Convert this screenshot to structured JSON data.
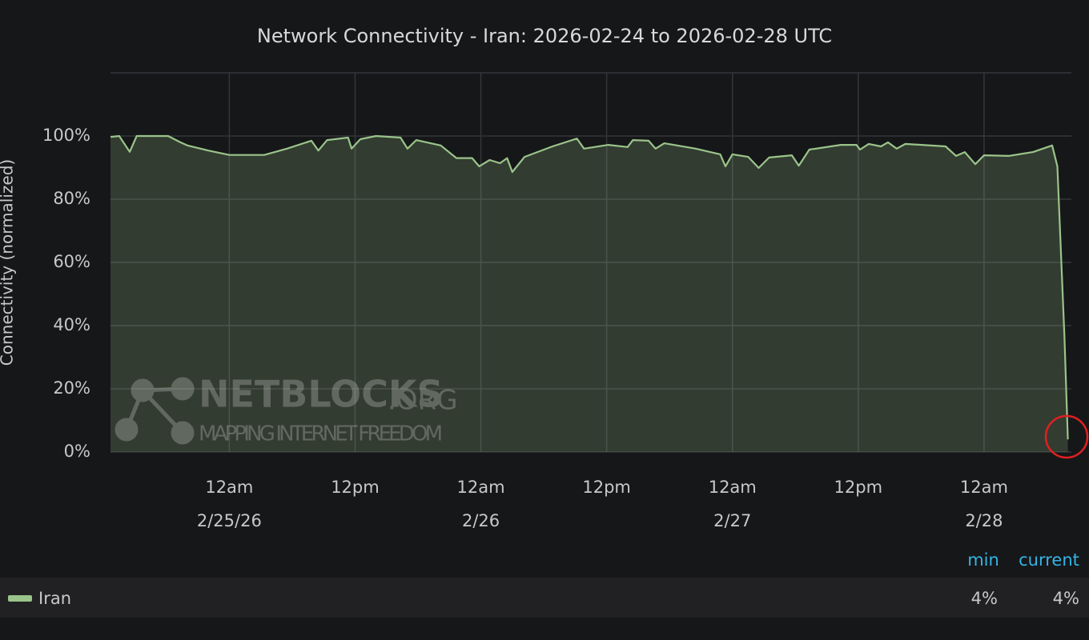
{
  "chart_data": {
    "type": "line",
    "title": "Network Connectivity - Iran: 2026-02-24 to 2026-02-28 UTC",
    "y_label": "Connectivity (normalized)",
    "x": [
      "2026-02-24T12:40",
      "2026-02-24T13:30",
      "2026-02-24T14:30",
      "2026-02-24T15:10",
      "2026-02-24T18:10",
      "2026-02-24T19:20",
      "2026-02-24T20:00",
      "2026-02-24T22:00",
      "2026-02-25T00:00",
      "2026-02-25T03:20",
      "2026-02-25T05:30",
      "2026-02-25T07:50",
      "2026-02-25T08:30",
      "2026-02-25T09:20",
      "2026-02-25T11:20",
      "2026-02-25T11:40",
      "2026-02-25T12:30",
      "2026-02-25T14:00",
      "2026-02-25T16:20",
      "2026-02-25T17:00",
      "2026-02-25T17:50",
      "2026-02-25T20:10",
      "2026-02-25T21:40",
      "2026-02-25T23:10",
      "2026-02-25T23:50",
      "2026-02-26T00:50",
      "2026-02-26T01:50",
      "2026-02-26T02:30",
      "2026-02-26T03:00",
      "2026-02-26T04:10",
      "2026-02-26T06:50",
      "2026-02-26T09:10",
      "2026-02-26T09:50",
      "2026-02-26T12:10",
      "2026-02-26T14:00",
      "2026-02-26T14:30",
      "2026-02-26T16:00",
      "2026-02-26T16:40",
      "2026-02-26T17:30",
      "2026-02-26T20:30",
      "2026-02-26T22:50",
      "2026-02-26T23:20",
      "2026-02-27T00:00",
      "2026-02-27T01:30",
      "2026-02-27T02:30",
      "2026-02-27T03:30",
      "2026-02-27T05:40",
      "2026-02-27T06:20",
      "2026-02-27T07:20",
      "2026-02-27T10:20",
      "2026-02-27T11:50",
      "2026-02-27T12:10",
      "2026-02-27T13:00",
      "2026-02-27T14:10",
      "2026-02-27T14:50",
      "2026-02-27T15:40",
      "2026-02-27T16:30",
      "2026-02-27T20:20",
      "2026-02-27T21:20",
      "2026-02-27T22:10",
      "2026-02-27T23:10",
      "2026-02-28T00:00",
      "2026-02-28T02:20",
      "2026-02-28T04:40",
      "2026-02-28T06:30",
      "2026-02-28T07:00",
      "2026-02-28T07:40",
      "2026-02-28T08:00"
    ],
    "series": [
      {
        "name": "Iran",
        "color": "#9ac48a",
        "values": [
          99.7,
          100,
          95,
          100,
          100,
          98,
          97,
          95.4,
          94,
          94,
          96,
          98.5,
          95.4,
          98.7,
          99.5,
          96,
          99,
          100,
          99.5,
          96,
          98.7,
          97,
          93,
          93,
          90.4,
          92.4,
          91.4,
          93,
          88.6,
          93.4,
          96.7,
          99.2,
          96,
          97.2,
          96.5,
          98.7,
          98.5,
          96,
          97.7,
          96,
          94.2,
          90.4,
          94.2,
          93.4,
          89.9,
          93.2,
          93.9,
          90.6,
          95.7,
          97.2,
          97.2,
          95.7,
          97.5,
          96.7,
          98,
          96,
          97.5,
          96.7,
          93.7,
          94.9,
          91.1,
          93.9,
          93.7,
          94.9,
          97,
          90.4,
          36.7,
          4
        ]
      }
    ],
    "xlim": [
      "2026-02-24T12:40",
      "2026-02-28T08:20"
    ],
    "xticks": [
      {
        "value": "2026-02-25T00:00",
        "label": [
          "12am",
          "2/25/26"
        ]
      },
      {
        "value": "2026-02-25T12:00",
        "label": [
          "12pm"
        ]
      },
      {
        "value": "2026-02-26T00:00",
        "label": [
          "12am",
          "2/26"
        ]
      },
      {
        "value": "2026-02-26T12:00",
        "label": [
          "12pm"
        ]
      },
      {
        "value": "2026-02-27T00:00",
        "label": [
          "12am",
          "2/27"
        ]
      },
      {
        "value": "2026-02-27T12:00",
        "label": [
          "12pm"
        ]
      },
      {
        "value": "2026-02-28T00:00",
        "label": [
          "12am",
          "2/28"
        ]
      }
    ],
    "ylim": [
      0,
      120
    ],
    "yticks": [
      {
        "value": 0,
        "label": "0%"
      },
      {
        "value": 20,
        "label": "20%"
      },
      {
        "value": 40,
        "label": "40%"
      },
      {
        "value": 60,
        "label": "60%"
      },
      {
        "value": 80,
        "label": "80%"
      },
      {
        "value": 100,
        "label": "100%"
      }
    ],
    "grid": true,
    "legend": {
      "columns": [
        "min",
        "current"
      ],
      "values": [
        "4%",
        "4%"
      ]
    },
    "watermark": {
      "brand": "NETBLOCKS",
      "suffix": ".ORG",
      "tagline": "MAPPING INTERNET FREEDOM"
    }
  }
}
